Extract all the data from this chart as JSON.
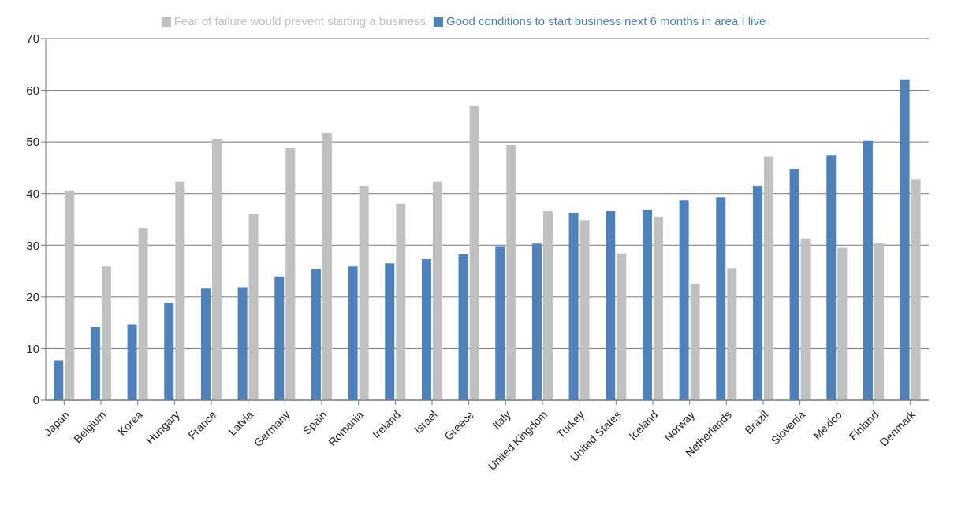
{
  "chart_data": {
    "type": "bar",
    "categories": [
      "Japan",
      "Belgium",
      "Korea",
      "Hungary",
      "France",
      "Latvia",
      "Germany",
      "Spain",
      "Romania",
      "Ireland",
      "Israel",
      "Greece",
      "Italy",
      "United Kingdom",
      "Turkey",
      "United States",
      "Iceland",
      "Norway",
      "Netherlands",
      "Brazil",
      "Slovenia",
      "Mexico",
      "Finland",
      "Denmark"
    ],
    "series": [
      {
        "name": "Good conditions to start business next 6 months in area I live",
        "color": "#4f81bd",
        "values": [
          7.7,
          14.2,
          14.7,
          18.9,
          21.6,
          21.9,
          24.0,
          25.4,
          25.9,
          26.5,
          27.3,
          28.2,
          29.8,
          30.3,
          36.3,
          36.6,
          36.9,
          38.7,
          39.3,
          41.5,
          44.7,
          47.4,
          50.2,
          62.1
        ]
      },
      {
        "name": "Fear of failure would prevent starting a business",
        "color": "#c0c0c0",
        "values": [
          40.6,
          25.9,
          33.3,
          42.3,
          50.5,
          36.0,
          48.8,
          51.7,
          41.5,
          38.0,
          42.3,
          57.0,
          49.4,
          36.6,
          34.9,
          28.4,
          35.5,
          22.6,
          25.6,
          47.2,
          31.3,
          29.5,
          30.4,
          42.8
        ]
      }
    ],
    "ylim": [
      0,
      70
    ],
    "yticks": [
      0,
      10,
      20,
      30,
      40,
      50,
      60,
      70
    ],
    "grid": "y",
    "legend": "top"
  }
}
